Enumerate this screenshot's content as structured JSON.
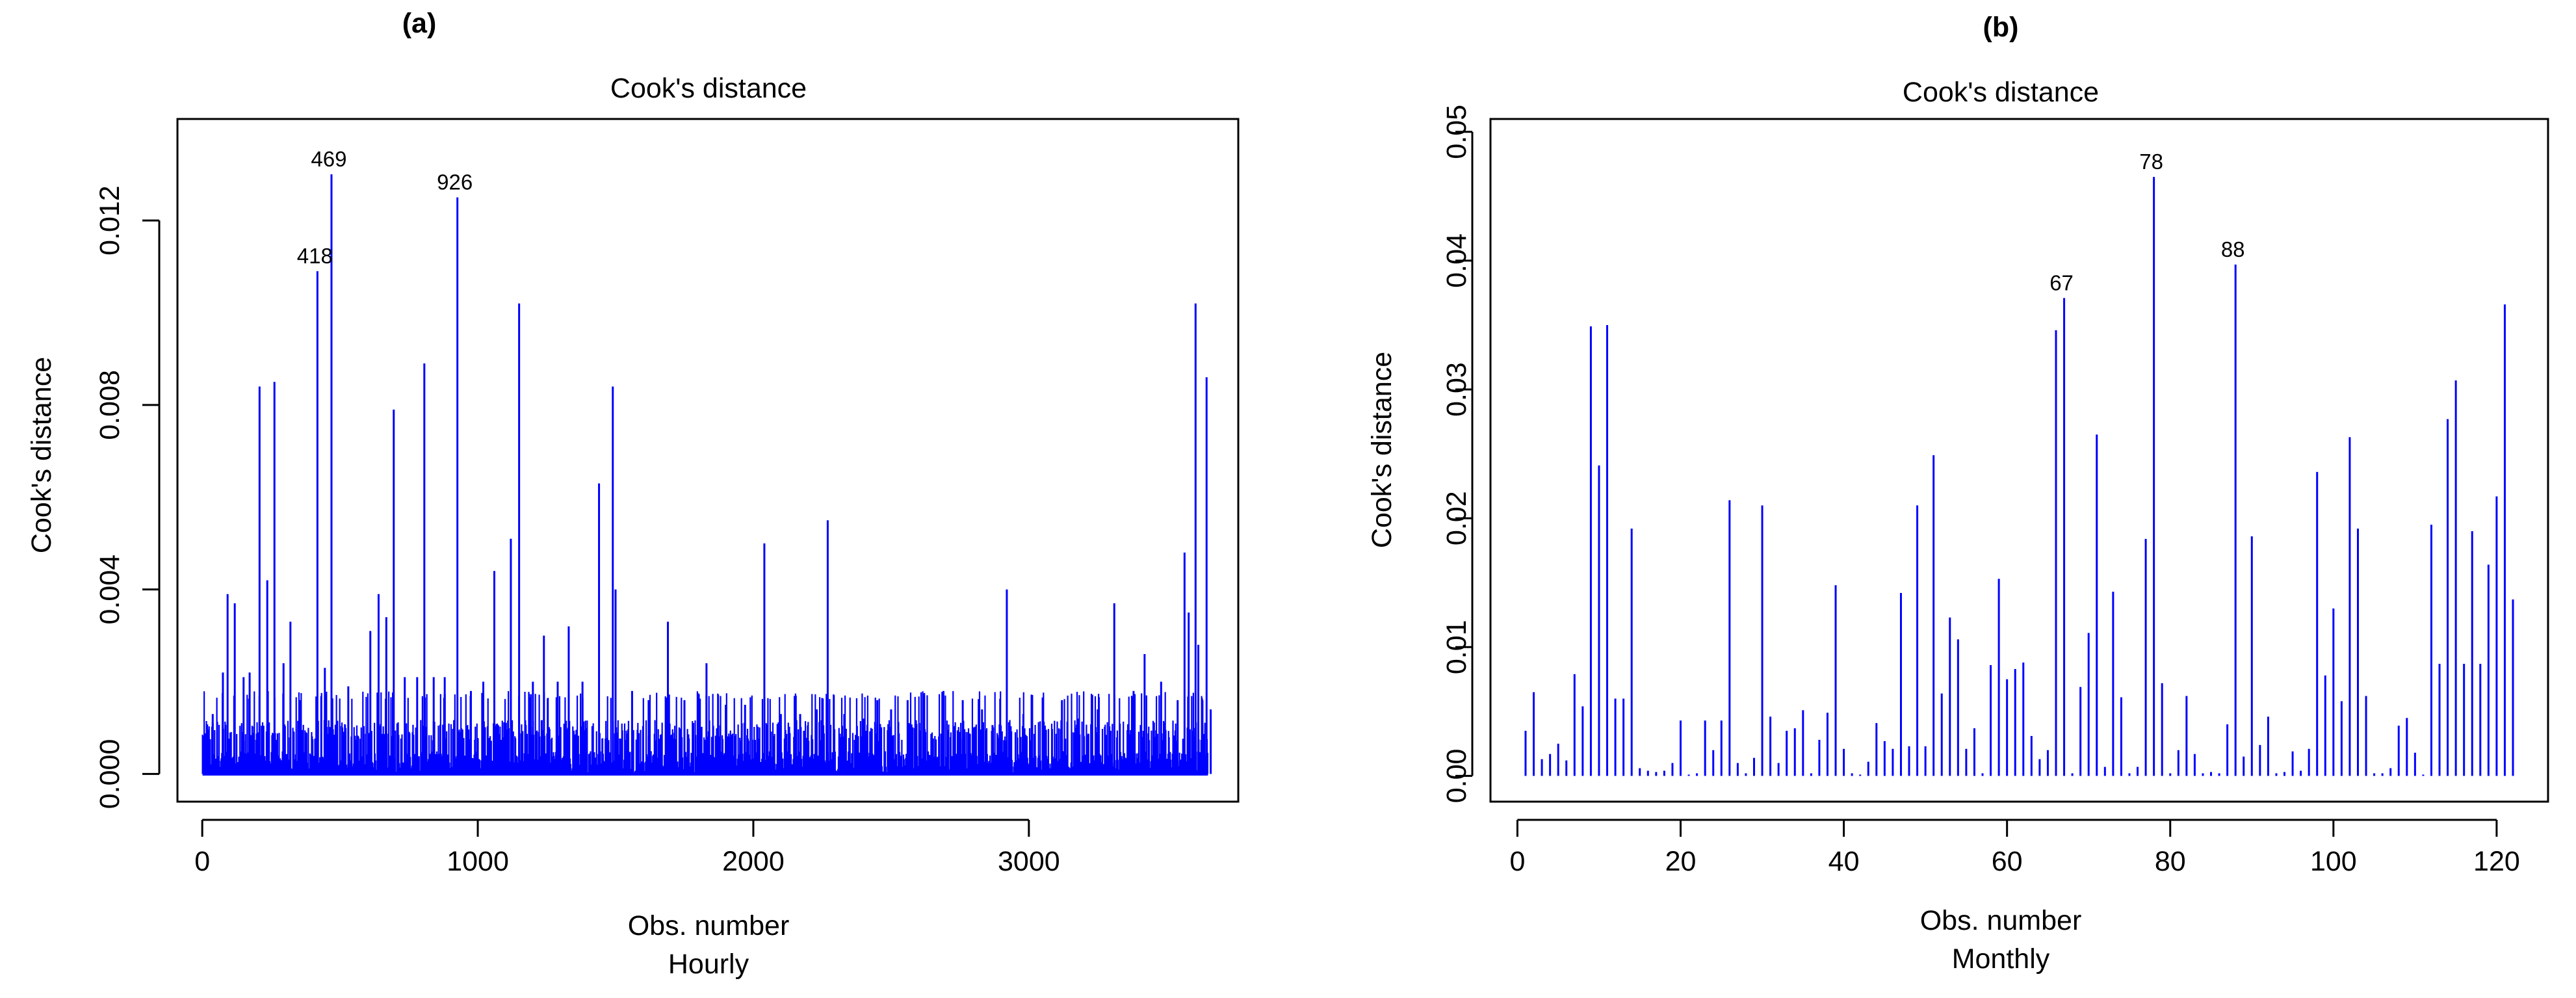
{
  "figure": {
    "background": "#ffffff",
    "spike_color": "#0000ff"
  },
  "chart_data": [
    {
      "type": "bar",
      "subtype": "vertical-spike",
      "panel_label": "(a)",
      "title": "Cook's distance",
      "xlabel": "Obs. number",
      "subtitle": "Hourly",
      "ylabel": "Cook's distance",
      "xlim": [
        -90,
        3760
      ],
      "ylim": [
        -0.0006,
        0.0142
      ],
      "x_ticks": [
        0,
        1000,
        2000,
        3000
      ],
      "x_tick_labels": [
        "0",
        "1000",
        "2000",
        "3000"
      ],
      "y_ticks": [
        0.0,
        0.004,
        0.008,
        0.012
      ],
      "y_tick_labels": [
        "0.000",
        "0.004",
        "0.008",
        "0.012"
      ],
      "grid": false,
      "legend": "none",
      "n_obs": 3650,
      "points": [
        [
          12,
          0.0007
        ],
        [
          38,
          0.0013
        ],
        [
          75,
          0.0022
        ],
        [
          92,
          0.0039
        ],
        [
          118,
          0.0037
        ],
        [
          150,
          0.0021
        ],
        [
          172,
          0.0022
        ],
        [
          208,
          0.0084
        ],
        [
          236,
          0.0042
        ],
        [
          262,
          0.0085
        ],
        [
          295,
          0.0024
        ],
        [
          320,
          0.0033
        ],
        [
          355,
          0.0016
        ],
        [
          418,
          0.0109
        ],
        [
          445,
          0.0023
        ],
        [
          469,
          0.013
        ],
        [
          530,
          0.0019
        ],
        [
          610,
          0.0031
        ],
        [
          640,
          0.0039
        ],
        [
          668,
          0.0034
        ],
        [
          695,
          0.0079
        ],
        [
          735,
          0.0021
        ],
        [
          780,
          0.0021
        ],
        [
          806,
          0.0089
        ],
        [
          840,
          0.0021
        ],
        [
          880,
          0.0021
        ],
        [
          926,
          0.0125
        ],
        [
          975,
          0.0018
        ],
        [
          1020,
          0.002
        ],
        [
          1060,
          0.0044
        ],
        [
          1120,
          0.0051
        ],
        [
          1150,
          0.0102
        ],
        [
          1200,
          0.002
        ],
        [
          1240,
          0.003
        ],
        [
          1290,
          0.002
        ],
        [
          1330,
          0.0032
        ],
        [
          1380,
          0.002
        ],
        [
          1440,
          0.0063
        ],
        [
          1490,
          0.0084
        ],
        [
          1500,
          0.004
        ],
        [
          1560,
          0.0018
        ],
        [
          1620,
          0.0016
        ],
        [
          1690,
          0.0033
        ],
        [
          1750,
          0.0016
        ],
        [
          1830,
          0.0024
        ],
        [
          1900,
          0.0015
        ],
        [
          1970,
          0.0015
        ],
        [
          2040,
          0.005
        ],
        [
          2100,
          0.0013
        ],
        [
          2170,
          0.0013
        ],
        [
          2230,
          0.0014
        ],
        [
          2270,
          0.0055
        ],
        [
          2330,
          0.0013
        ],
        [
          2400,
          0.0012
        ],
        [
          2450,
          0.0016
        ],
        [
          2500,
          0.0014
        ],
        [
          2560,
          0.0016
        ],
        [
          2620,
          0.0017
        ],
        [
          2690,
          0.0018
        ],
        [
          2760,
          0.0016
        ],
        [
          2830,
          0.0014
        ],
        [
          2920,
          0.004
        ],
        [
          2980,
          0.0013
        ],
        [
          3050,
          0.0013
        ],
        [
          3120,
          0.0016
        ],
        [
          3180,
          0.0012
        ],
        [
          3250,
          0.0014
        ],
        [
          3310,
          0.0037
        ],
        [
          3380,
          0.0018
        ],
        [
          3420,
          0.0026
        ],
        [
          3480,
          0.002
        ],
        [
          3540,
          0.0016
        ],
        [
          3565,
          0.0048
        ],
        [
          3580,
          0.0035
        ],
        [
          3605,
          0.0102
        ],
        [
          3615,
          0.0028
        ],
        [
          3630,
          0.0016
        ],
        [
          3645,
          0.0086
        ],
        [
          3660,
          0.0014
        ]
      ],
      "annotations": [
        {
          "x": 469,
          "y": 0.013,
          "text": "469"
        },
        {
          "x": 926,
          "y": 0.0125,
          "text": "926"
        },
        {
          "x": 418,
          "y": 0.0109,
          "text": "418"
        }
      ]
    },
    {
      "type": "bar",
      "subtype": "vertical-spike",
      "panel_label": "(b)",
      "title": "Cook's distance",
      "xlabel": "Obs. number",
      "subtitle": "Monthly",
      "ylabel": "Cook's distance",
      "xlim": [
        -3.3,
        126.3
      ],
      "ylim": [
        -0.002,
        0.051
      ],
      "x_ticks": [
        0,
        20,
        40,
        60,
        80,
        100,
        120
      ],
      "x_tick_labels": [
        "0",
        "20",
        "40",
        "60",
        "80",
        "100",
        "120"
      ],
      "y_ticks": [
        0.0,
        0.01,
        0.02,
        0.03,
        0.04,
        0.05
      ],
      "y_tick_labels": [
        "0.00",
        "0.01",
        "0.02",
        "0.03",
        "0.04",
        "0.05"
      ],
      "grid": false,
      "legend": "none",
      "n_obs": 122,
      "values": [
        0.0035,
        0.0065,
        0.0013,
        0.0017,
        0.0025,
        0.0012,
        0.0079,
        0.0054,
        0.0349,
        0.0241,
        0.035,
        0.006,
        0.006,
        0.0192,
        0.0006,
        0.0004,
        0.0003,
        0.0004,
        0.001,
        0.0043,
        0.0001,
        0.0002,
        0.0043,
        0.002,
        0.0043,
        0.0214,
        0.001,
        0.0002,
        0.0014,
        0.021,
        0.0046,
        0.001,
        0.0035,
        0.0037,
        0.0051,
        0.0002,
        0.0028,
        0.0049,
        0.0148,
        0.0021,
        0.0002,
        0.0001,
        0.0011,
        0.0041,
        0.0027,
        0.0021,
        0.0142,
        0.0023,
        0.021,
        0.0023,
        0.0249,
        0.0064,
        0.0123,
        0.0106,
        0.0021,
        0.0037,
        0.0002,
        0.0086,
        0.0153,
        0.0075,
        0.0083,
        0.0088,
        0.0031,
        0.0013,
        0.002,
        0.0346,
        0.0371,
        0.0002,
        0.0069,
        0.0111,
        0.0265,
        0.0007,
        0.0143,
        0.0061,
        0.0002,
        0.0007,
        0.0184,
        0.0465,
        0.0072,
        0.0002,
        0.002,
        0.0062,
        0.0017,
        0.0002,
        0.0003,
        0.0002,
        0.004,
        0.0397,
        0.0015,
        0.0186,
        0.0024,
        0.0046,
        0.0002,
        0.0003,
        0.0019,
        0.0004,
        0.0021,
        0.0236,
        0.0078,
        0.013,
        0.0058,
        0.0263,
        0.0192,
        0.0062,
        0.0002,
        0.0002,
        0.0006,
        0.0039,
        0.0045,
        0.0018,
        0.0001,
        0.0195,
        0.0087,
        0.0277,
        0.0307,
        0.0087,
        0.019,
        0.0087,
        0.0164,
        0.0217,
        0.0366,
        0.0137
      ],
      "annotations": [
        {
          "x": 67,
          "y": 0.0371,
          "text": "67"
        },
        {
          "x": 78,
          "y": 0.0465,
          "text": "78"
        },
        {
          "x": 88,
          "y": 0.0397,
          "text": "88"
        }
      ]
    }
  ]
}
